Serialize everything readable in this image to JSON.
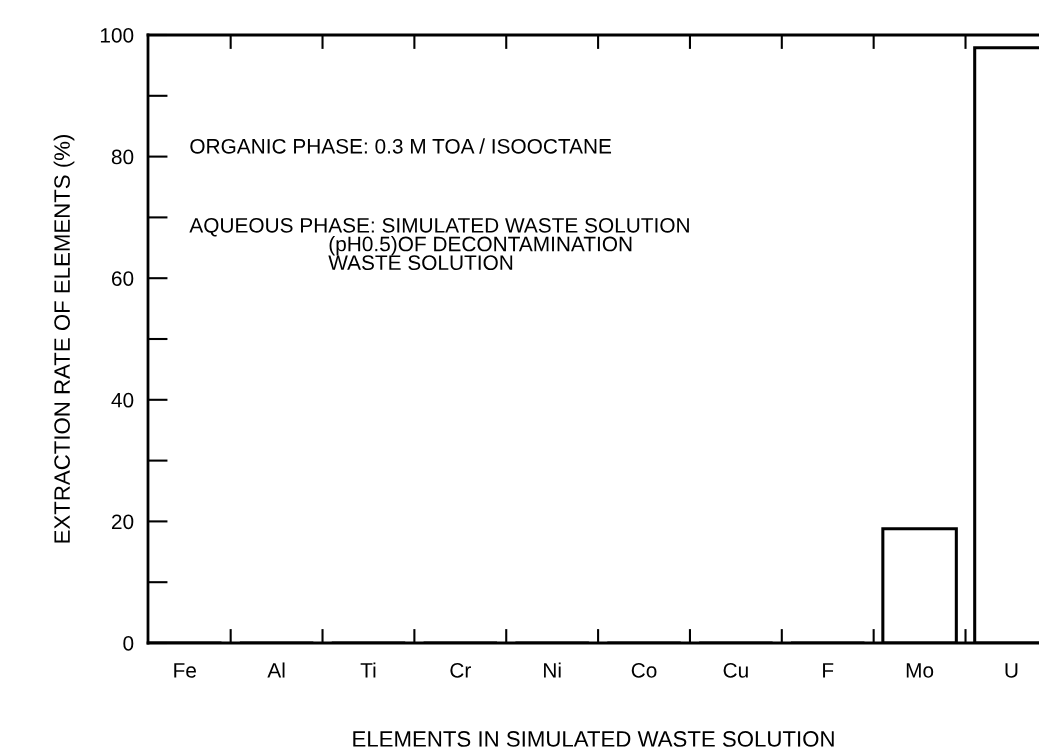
{
  "chart_data": {
    "type": "bar",
    "xlabel": "ELEMENTS IN SIMULATED WASTE SOLUTION",
    "ylabel": "EXTRACTION RATE OF ELEMENTS (%)",
    "categories": [
      "Fe",
      "Al",
      "Ti",
      "Cr",
      "Ni",
      "Co",
      "Cu",
      "F",
      "Mo",
      "U"
    ],
    "values": [
      0,
      0,
      0,
      0,
      0,
      0,
      0,
      0,
      18.8,
      97.9
    ],
    "color": "#000000",
    "ylim": [
      0,
      100
    ],
    "yticks": [
      0,
      20,
      40,
      60,
      80,
      100
    ],
    "grid": false,
    "legend": false,
    "annotations": [
      "ORGANIC PHASE: 0.3 M TOA / ISOOCTANE",
      "AQUEOUS PHASE: SIMULATED WASTE SOLUTION\n                        (pH0.5)OF DECONTAMINATION\n                        WASTE SOLUTION"
    ]
  }
}
